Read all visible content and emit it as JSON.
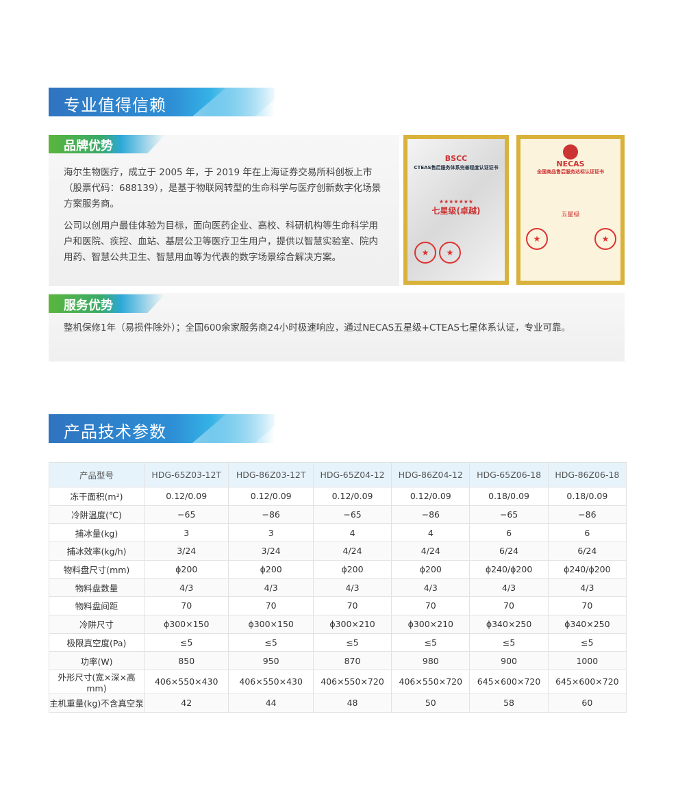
{
  "section1": {
    "title": "专业值得信赖"
  },
  "brand": {
    "title": "品牌优势",
    "p1": "海尔生物医疗，成立于 2005 年，于 2019 年在上海证券交易所科创板上市（股票代码：688139），是基于物联网转型的生命科学与医疗创新数字化场景方案服务商。",
    "p2": "公司以创用户最佳体验为目标，面向医药企业、高校、科研机构等生命科学用户和医院、疾控、血站、基层公卫等医疗卫生用户，提供以智慧实验室、院内用药、智慧公共卫生、智慧用血等为代表的数字场景综合解决方案。"
  },
  "certificates": [
    {
      "org": "BSCC",
      "title": "CTEAS售后服务体系完善程度认证证书",
      "level": "七星级(卓越)"
    },
    {
      "org": "NECAS",
      "title": "全国商品售后服务达标认证证书",
      "level": "五星级"
    }
  ],
  "service": {
    "title": "服务优势",
    "text": "整机保修1年（易损件除外）；全国600余家服务商24小时极速响应，通过NECAS五星级+CTEAS七星体系认证，专业可靠。"
  },
  "section2": {
    "title": "产品技术参数"
  },
  "table": {
    "header": [
      "产品型号",
      "HDG-65Z03-12T",
      "HDG-86Z03-12T",
      "HDG-65Z04-12",
      "HDG-86Z04-12",
      "HDG-65Z06-18",
      "HDG-86Z06-18"
    ],
    "rows": [
      [
        "冻干面积(m²)",
        "0.12/0.09",
        "0.12/0.09",
        "0.12/0.09",
        "0.12/0.09",
        "0.18/0.09",
        "0.18/0.09"
      ],
      [
        "冷阱温度(℃)",
        "−65",
        "−86",
        "−65",
        "−86",
        "−65",
        "−86"
      ],
      [
        "捕冰量(kg)",
        "3",
        "3",
        "4",
        "4",
        "6",
        "6"
      ],
      [
        "捕冰效率(kg/h)",
        "3/24",
        "3/24",
        "4/24",
        "4/24",
        "6/24",
        "6/24"
      ],
      [
        "物料盘尺寸(mm)",
        "ϕ200",
        "ϕ200",
        "ϕ200",
        "ϕ200",
        "ϕ240/ϕ200",
        "ϕ240/ϕ200"
      ],
      [
        "物料盘数量",
        "4/3",
        "4/3",
        "4/3",
        "4/3",
        "4/3",
        "4/3"
      ],
      [
        "物料盘间距",
        "70",
        "70",
        "70",
        "70",
        "70",
        "70"
      ],
      [
        "冷阱尺寸",
        "ϕ300×150",
        "ϕ300×150",
        "ϕ300×210",
        "ϕ300×210",
        "ϕ340×250",
        "ϕ340×250"
      ],
      [
        "极限真空度(Pa)",
        "≤5",
        "≤5",
        "≤5",
        "≤5",
        "≤5",
        "≤5"
      ],
      [
        "功率(W)",
        "850",
        "950",
        "870",
        "980",
        "900",
        "1000"
      ],
      [
        "外形尺寸(宽×深×高mm)",
        "406×550×430",
        "406×550×430",
        "406×550×720",
        "406×550×720",
        "645×600×720",
        "645×600×720"
      ],
      [
        "主机重量(kg)不含真空泵",
        "42",
        "44",
        "48",
        "50",
        "58",
        "60"
      ]
    ]
  }
}
